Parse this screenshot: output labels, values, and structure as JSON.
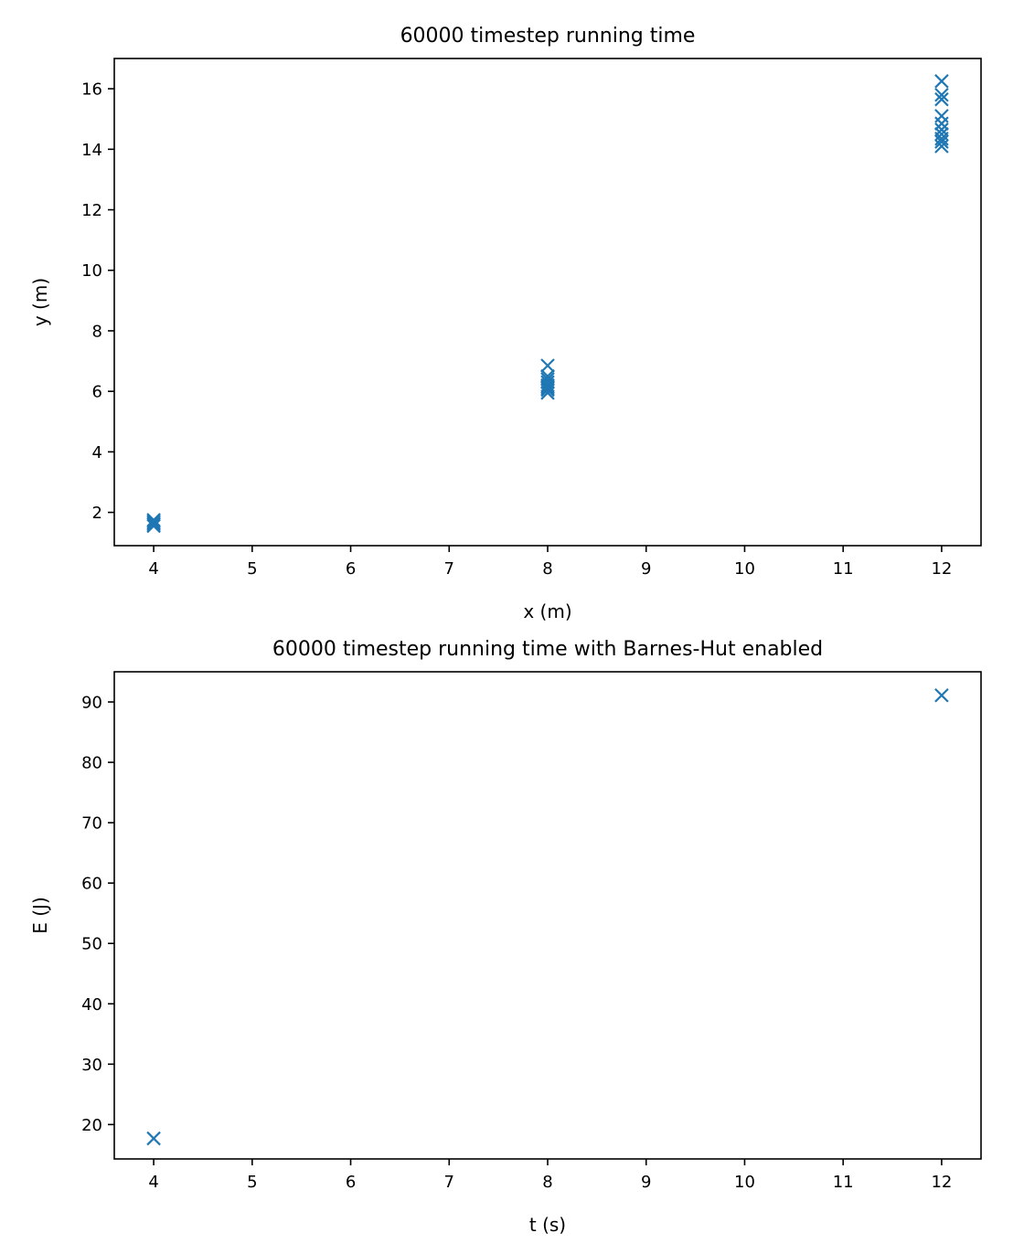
{
  "chart_data": [
    {
      "type": "scatter",
      "title": "60000 timestep running time",
      "xlabel": "x (m)",
      "ylabel": "y (m)",
      "xlim": [
        3.6,
        12.4
      ],
      "ylim": [
        0.9,
        17.0
      ],
      "xticks": [
        4,
        5,
        6,
        7,
        8,
        9,
        10,
        11,
        12
      ],
      "yticks": [
        2,
        4,
        6,
        8,
        10,
        12,
        14,
        16
      ],
      "marker": "x",
      "color": "#1f77b4",
      "grid": false,
      "legend": "none",
      "series": [
        {
          "points": [
            [
              4,
              1.55
            ],
            [
              4,
              1.6
            ],
            [
              4,
              1.65
            ],
            [
              4,
              1.7
            ],
            [
              4,
              1.75
            ],
            [
              8,
              5.95
            ],
            [
              8,
              6.05
            ],
            [
              8,
              6.1
            ],
            [
              8,
              6.15
            ],
            [
              8,
              6.2
            ],
            [
              8,
              6.3
            ],
            [
              8,
              6.4
            ],
            [
              8,
              6.5
            ],
            [
              8,
              6.85
            ],
            [
              12,
              14.1
            ],
            [
              12,
              14.25
            ],
            [
              12,
              14.35
            ],
            [
              12,
              14.5
            ],
            [
              12,
              14.65
            ],
            [
              12,
              14.85
            ],
            [
              12,
              15.1
            ],
            [
              12,
              15.65
            ],
            [
              12,
              15.8
            ],
            [
              12,
              16.25
            ]
          ]
        }
      ]
    },
    {
      "type": "scatter",
      "title": "60000 timestep running time with Barnes-Hut enabled",
      "xlabel": "t (s)",
      "ylabel": "E (J)",
      "xlim": [
        3.6,
        12.4
      ],
      "ylim": [
        14.3,
        95.0
      ],
      "xticks": [
        4,
        5,
        6,
        7,
        8,
        9,
        10,
        11,
        12
      ],
      "yticks": [
        20,
        30,
        40,
        50,
        60,
        70,
        80,
        90
      ],
      "marker": "x",
      "color": "#1f77b4",
      "grid": false,
      "legend": "none",
      "series": [
        {
          "points": [
            [
              4,
              17.7
            ],
            [
              12,
              91.1
            ]
          ]
        }
      ]
    }
  ]
}
